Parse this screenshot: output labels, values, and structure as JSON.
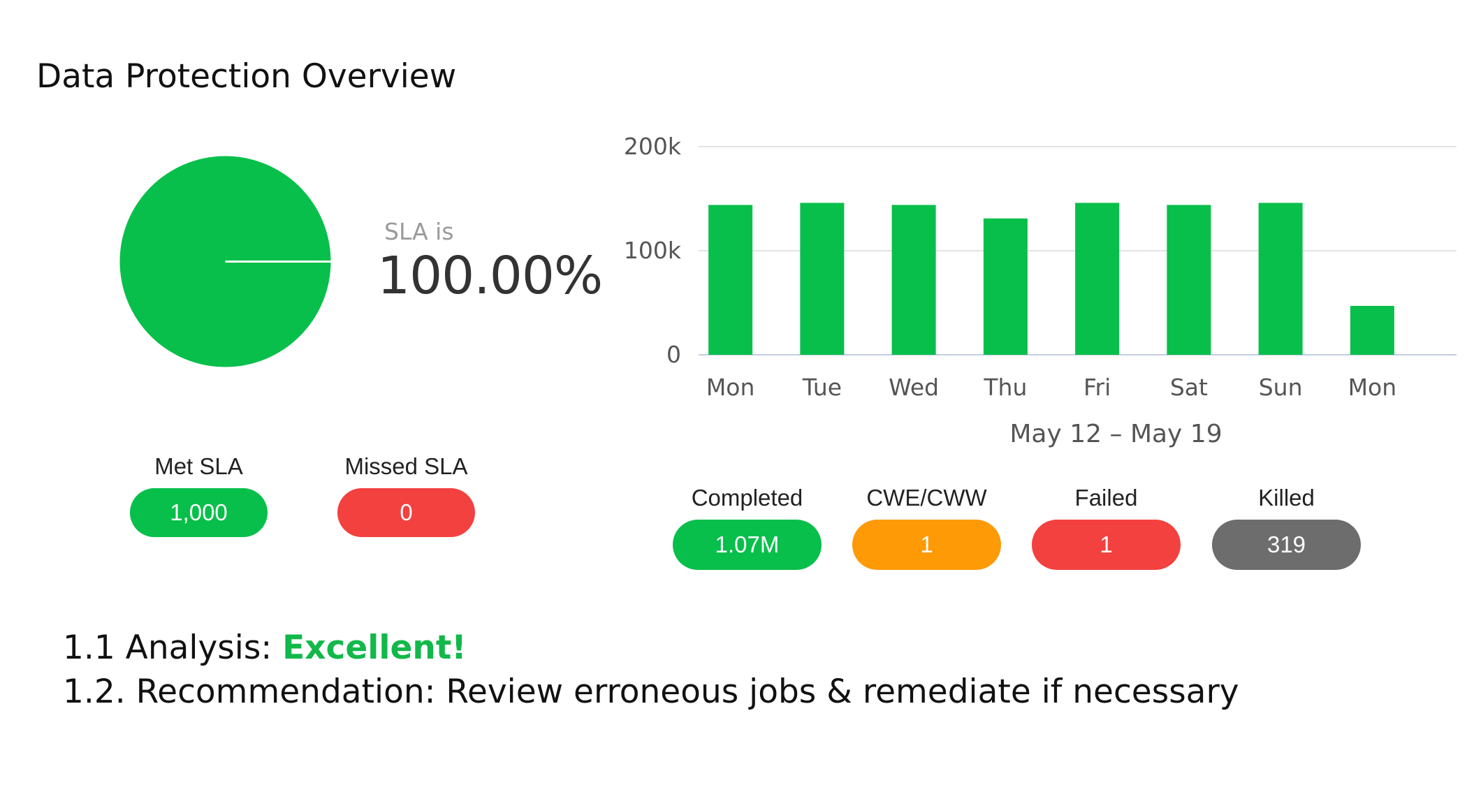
{
  "title": "Data Protection Overview",
  "sla": {
    "caption": "SLA is",
    "value": "100.00%",
    "met_label": "Met SLA",
    "met_value": "1,000",
    "missed_label": "Missed SLA",
    "missed_value": "0",
    "pie_color": "#07bf4a",
    "pie_fraction_met": 1.0
  },
  "jobs": [
    {
      "label": "Completed",
      "value": "1.07M",
      "color": "#07bf4a"
    },
    {
      "label": "CWE/CWW",
      "value": "1",
      "color": "#fd9a05"
    },
    {
      "label": "Failed",
      "value": "1",
      "color": "#f2413f"
    },
    {
      "label": "Killed",
      "value": "319",
      "color": "#6d6d6d"
    }
  ],
  "colors": {
    "met": "#07bf4a",
    "missed": "#f2413f",
    "bar": "#07bf4a",
    "excellent": "#12b84a"
  },
  "chart_data": {
    "type": "bar",
    "categories": [
      "Mon",
      "Tue",
      "Wed",
      "Thu",
      "Fri",
      "Sat",
      "Sun",
      "Mon"
    ],
    "values": [
      144000,
      146000,
      144000,
      131000,
      146000,
      144000,
      146000,
      47000
    ],
    "ylim": [
      0,
      200000
    ],
    "yticks": [
      0,
      100000,
      200000
    ],
    "ytick_labels": [
      "0",
      "100k",
      "200k"
    ],
    "xlabel": "May 12 – May 19",
    "ylabel": "",
    "grid": true,
    "bar_color": "#07bf4a"
  },
  "analysis": {
    "label": "1.1 Analysis: ",
    "verdict": "Excellent!",
    "recommendation": "1.2. Recommendation: Review erroneous jobs & remediate if necessary"
  }
}
